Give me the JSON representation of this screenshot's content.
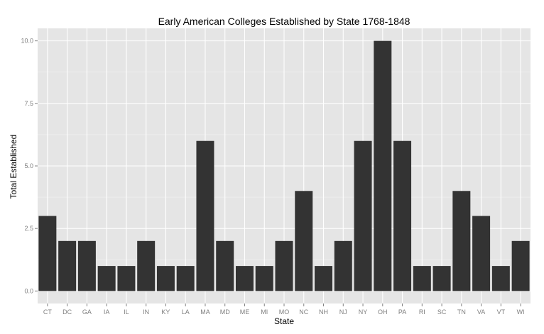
{
  "chart_data": {
    "type": "bar",
    "title": "Early American Colleges Established by State 1768-1848",
    "xlabel": "State",
    "ylabel": "Total Established",
    "categories": [
      "CT",
      "DC",
      "GA",
      "IA",
      "IL",
      "IN",
      "KY",
      "LA",
      "MA",
      "MD",
      "ME",
      "MI",
      "MO",
      "NC",
      "NH",
      "NJ",
      "NY",
      "OH",
      "PA",
      "RI",
      "SC",
      "TN",
      "VA",
      "VT",
      "WI"
    ],
    "values": [
      3,
      2,
      2,
      1,
      1,
      2,
      1,
      1,
      6,
      2,
      1,
      1,
      2,
      4,
      1,
      2,
      6,
      10,
      6,
      1,
      1,
      4,
      3,
      1,
      2
    ],
    "ylim": [
      -0.5,
      10.5
    ],
    "yticks": [
      0,
      2.5,
      5,
      7.5,
      10
    ],
    "ytick_labels": [
      "0.0",
      "2.5",
      "5.0",
      "7.5",
      "10.0"
    ],
    "grid": true,
    "colors": {
      "panel": "#e5e5e5",
      "grid_major": "#ffffff",
      "grid_minor": "#f2f2f2",
      "bar": "#333333",
      "tick": "#7f7f7f"
    }
  }
}
